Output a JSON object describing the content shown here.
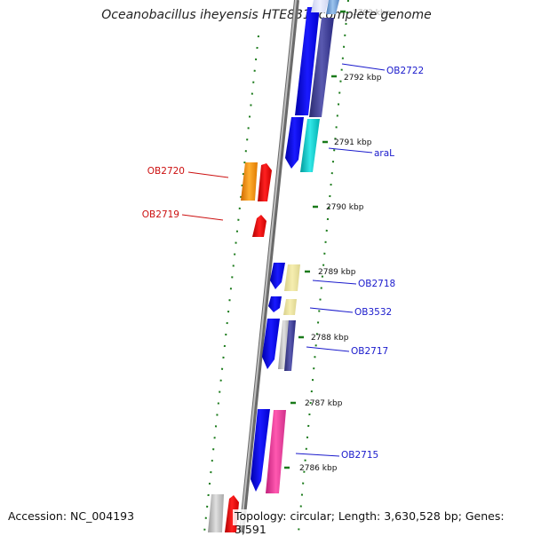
{
  "title": "Oceanobacillus iheyensis HTE831, complete genome",
  "footer": {
    "accession": "Accession: NC_004193",
    "summary": "Topology: circular; Length: 3,630,528 bp; Genes: 3,591"
  },
  "ticks": [
    "2793 kbp",
    "2792 kbp",
    "2791 kbp",
    "2790 kbp",
    "2789 kbp",
    "2788 kbp",
    "2787 kbp",
    "2786 kbp"
  ],
  "gene_labels": {
    "right": [
      "OB2722",
      "araL",
      "OB2718",
      "OB3532",
      "OB2717",
      "OB2715"
    ],
    "left": [
      "OB2720",
      "OB2719"
    ]
  },
  "colors": {
    "forward_label": "#1a1acc",
    "reverse_label": "#cc1010",
    "tick_mark": "#1a7a1a",
    "backbone": "#8a8a8a"
  }
}
